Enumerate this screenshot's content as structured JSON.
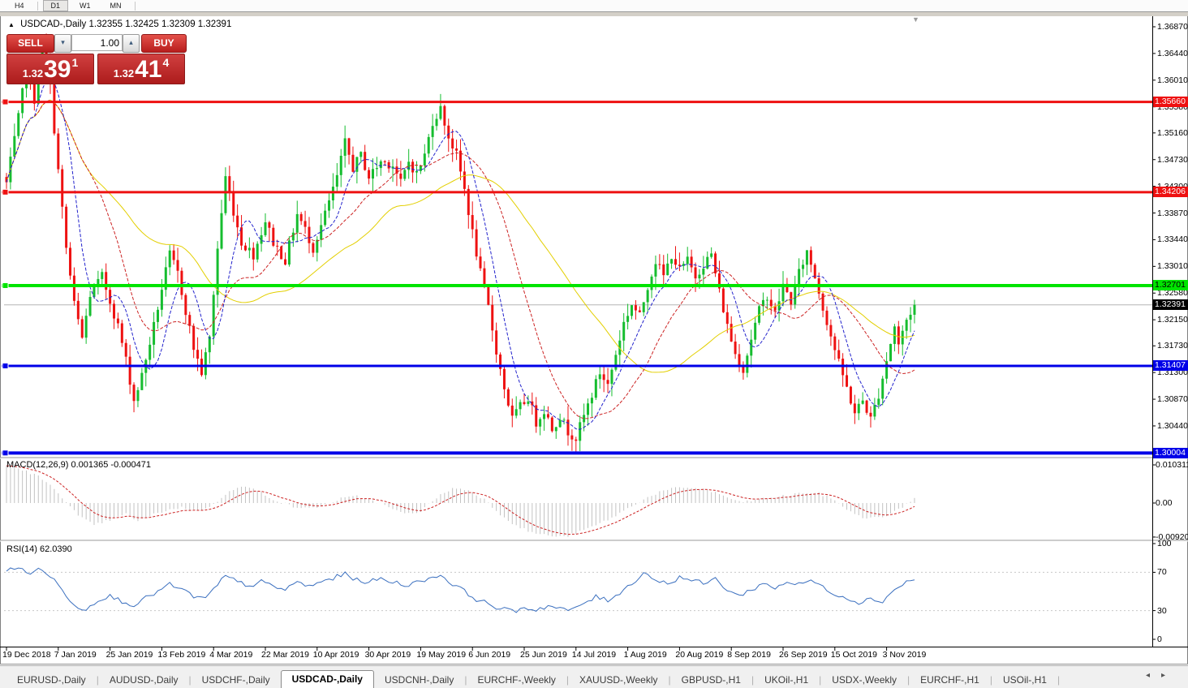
{
  "icons": {
    "collapse_triangle": "▲",
    "scroll_end_triangle": "▼",
    "spinner_up": "▴",
    "spinner_down": "▾",
    "tabs_prev": "◂",
    "tabs_next": "▸"
  },
  "toolbar": {
    "timeframes": [
      {
        "label": "H4",
        "active": false
      },
      {
        "label": "D1",
        "active": true
      },
      {
        "label": "W1",
        "active": false
      },
      {
        "label": "MN",
        "active": false
      }
    ]
  },
  "chart_header": {
    "title": "USDCAD-,Daily",
    "ohlc": "1.32355 1.32425 1.32309 1.32391"
  },
  "trade_widget": {
    "sell_label": "SELL",
    "buy_label": "BUY",
    "volume": "1.00",
    "sell_price": {
      "small": "1.32",
      "big": "39",
      "sup": "1"
    },
    "buy_price": {
      "small": "1.32",
      "big": "41",
      "sup": "4"
    }
  },
  "price_axis": {
    "ticks": [
      "1.36870",
      "1.36440",
      "1.36010",
      "1.35580",
      "1.35160",
      "1.34730",
      "1.34300",
      "1.33870",
      "1.33440",
      "1.33010",
      "1.32580",
      "1.32150",
      "1.31730",
      "1.31300",
      "1.30870",
      "1.30440"
    ],
    "line_labels": [
      {
        "text": "1.35660",
        "price": 1.3566,
        "bg": "#ee1111",
        "fg": "#ffffff"
      },
      {
        "text": "1.34206",
        "price": 1.34206,
        "bg": "#ee1111",
        "fg": "#ffffff"
      },
      {
        "text": "1.32701",
        "price": 1.32701,
        "bg": "#00e400",
        "fg": "#000000"
      },
      {
        "text": "1.32391",
        "price": 1.32391,
        "bg": "#000000",
        "fg": "#ffffff"
      },
      {
        "text": "1.31407",
        "price": 1.31407,
        "bg": "#0000e8",
        "fg": "#ffffff"
      },
      {
        "text": "1.30004",
        "price": 1.30004,
        "bg": "#0000e8",
        "fg": "#ffffff"
      }
    ]
  },
  "macd_panel": {
    "label": "MACD(12,26,9) 0.001365 -0.000471",
    "scale": [
      "0.010311",
      "0.00",
      "-0.009203"
    ]
  },
  "rsi_panel": {
    "label": "RSI(14) 62.0390",
    "scale": [
      "100",
      "70",
      "30",
      "0"
    ]
  },
  "date_axis": [
    "19 Dec 2018",
    "7 Jan 2019",
    "25 Jan 2019",
    "13 Feb 2019",
    "4 Mar 2019",
    "22 Mar 2019",
    "10 Apr 2019",
    "30 Apr 2019",
    "19 May 2019",
    "6 Jun 2019",
    "25 Jun 2019",
    "14 Jul 2019",
    "1 Aug 2019",
    "20 Aug 2019",
    "8 Sep 2019",
    "26 Sep 2019",
    "15 Oct 2019",
    "3 Nov 2019"
  ],
  "tabs": [
    {
      "label": "EURUSD-,Daily",
      "active": false
    },
    {
      "label": "AUDUSD-,Daily",
      "active": false
    },
    {
      "label": "USDCHF-,Daily",
      "active": false
    },
    {
      "label": "USDCAD-,Daily",
      "active": true
    },
    {
      "label": "USDCNH-,Daily",
      "active": false
    },
    {
      "label": "EURCHF-,Weekly",
      "active": false
    },
    {
      "label": "XAUUSD-,Weekly",
      "active": false
    },
    {
      "label": "GBPUSD-,H1",
      "active": false
    },
    {
      "label": "UKOil-,H1",
      "active": false
    },
    {
      "label": "USDX-,Weekly",
      "active": false
    },
    {
      "label": "EURCHF-,H1",
      "active": false
    },
    {
      "label": "USOil-,H1",
      "active": false
    }
  ],
  "chart_data": {
    "type": "candlestick",
    "symbol": "USDCAD-",
    "timeframe": "Daily",
    "ohlc_display": {
      "open": 1.32355,
      "high": 1.32425,
      "low": 1.32309,
      "close": 1.32391
    },
    "y_axis": {
      "max_label": 1.3687,
      "min_label": 1.3044,
      "tick_step": 0.0043
    },
    "x_range": {
      "first_tick": "19 Dec 2018",
      "last_tick": "3 Nov 2019",
      "bars_visible": 229
    },
    "horizontal_lines": [
      {
        "price": 1.3566,
        "color": "#ee1111",
        "width": 3,
        "handle": true
      },
      {
        "price": 1.34206,
        "color": "#ee1111",
        "width": 3,
        "handle": true
      },
      {
        "price": 1.32701,
        "color": "#00e400",
        "width": 4,
        "handle": true
      },
      {
        "price": 1.32391,
        "color": "#b6b6b6",
        "width": 1,
        "handle": false,
        "role": "current-price"
      },
      {
        "price": 1.31407,
        "color": "#0000e8",
        "width": 3,
        "handle": true
      },
      {
        "price": 1.30004,
        "color": "#0000e8",
        "width": 4,
        "handle": true
      }
    ],
    "colors": {
      "candle_up": "#16bd2f",
      "candle_down": "#ee1111",
      "ma_fast": "#2222cc",
      "ma_mid": "#cc2222",
      "ma_slow": "#e3cf00",
      "macd_bars": "#c2c2c2",
      "macd_signal": "#cc2222",
      "rsi_line": "#3a6fbf",
      "rsi_levels": "#c8c8c8"
    },
    "moving_averages": [
      {
        "name": "fast",
        "style": "dashed",
        "period": 8
      },
      {
        "name": "mid",
        "style": "dashed",
        "period": 20
      },
      {
        "name": "slow",
        "style": "solid",
        "period": 45
      }
    ],
    "price_anchors": [
      [
        0,
        1.3435
      ],
      [
        3,
        1.354
      ],
      [
        5,
        1.362
      ],
      [
        7,
        1.357
      ],
      [
        9,
        1.3655
      ],
      [
        11,
        1.359
      ],
      [
        13,
        1.3455
      ],
      [
        15,
        1.333
      ],
      [
        17,
        1.324
      ],
      [
        19,
        1.3185
      ],
      [
        21,
        1.3255
      ],
      [
        24,
        1.3285
      ],
      [
        26,
        1.3245
      ],
      [
        28,
        1.3205
      ],
      [
        30,
        1.315
      ],
      [
        32,
        1.3085
      ],
      [
        34,
        1.3125
      ],
      [
        37,
        1.3205
      ],
      [
        39,
        1.3265
      ],
      [
        41,
        1.332
      ],
      [
        43,
        1.329
      ],
      [
        45,
        1.323
      ],
      [
        47,
        1.317
      ],
      [
        49,
        1.313
      ],
      [
        51,
        1.3185
      ],
      [
        53,
        1.333
      ],
      [
        55,
        1.3445
      ],
      [
        57,
        1.339
      ],
      [
        59,
        1.334
      ],
      [
        62,
        1.332
      ],
      [
        65,
        1.3375
      ],
      [
        67,
        1.334
      ],
      [
        70,
        1.331
      ],
      [
        73,
        1.3385
      ],
      [
        75,
        1.336
      ],
      [
        77,
        1.333
      ],
      [
        80,
        1.3385
      ],
      [
        83,
        1.3445
      ],
      [
        85,
        1.35
      ],
      [
        87,
        1.346
      ],
      [
        89,
        1.348
      ],
      [
        91,
        1.3445
      ],
      [
        94,
        1.347
      ],
      [
        97,
        1.3465
      ],
      [
        99,
        1.3435
      ],
      [
        101,
        1.347
      ],
      [
        103,
        1.345
      ],
      [
        105,
        1.348
      ],
      [
        107,
        1.3535
      ],
      [
        109,
        1.3555
      ],
      [
        111,
        1.351
      ],
      [
        113,
        1.348
      ],
      [
        115,
        1.3425
      ],
      [
        117,
        1.3355
      ],
      [
        119,
        1.329
      ],
      [
        121,
        1.3235
      ],
      [
        123,
        1.3165
      ],
      [
        125,
        1.3105
      ],
      [
        127,
        1.3055
      ],
      [
        129,
        1.3075
      ],
      [
        131,
        1.309
      ],
      [
        133,
        1.305
      ],
      [
        135,
        1.307
      ],
      [
        137,
        1.304
      ],
      [
        139,
        1.306
      ],
      [
        141,
        1.3035
      ],
      [
        143,
        1.3025
      ],
      [
        145,
        1.306
      ],
      [
        147,
        1.3095
      ],
      [
        149,
        1.313
      ],
      [
        151,
        1.311
      ],
      [
        153,
        1.316
      ],
      [
        155,
        1.321
      ],
      [
        157,
        1.324
      ],
      [
        159,
        1.322
      ],
      [
        161,
        1.327
      ],
      [
        163,
        1.331
      ],
      [
        165,
        1.3285
      ],
      [
        167,
        1.332
      ],
      [
        169,
        1.3295
      ],
      [
        171,
        1.331
      ],
      [
        173,
        1.3285
      ],
      [
        175,
        1.3305
      ],
      [
        177,
        1.332
      ],
      [
        179,
        1.326
      ],
      [
        181,
        1.3205
      ],
      [
        183,
        1.316
      ],
      [
        185,
        1.3135
      ],
      [
        187,
        1.3185
      ],
      [
        189,
        1.323
      ],
      [
        191,
        1.3255
      ],
      [
        193,
        1.3225
      ],
      [
        195,
        1.327
      ],
      [
        197,
        1.3245
      ],
      [
        199,
        1.329
      ],
      [
        201,
        1.3325
      ],
      [
        203,
        1.3285
      ],
      [
        205,
        1.3235
      ],
      [
        207,
        1.319
      ],
      [
        209,
        1.3145
      ],
      [
        211,
        1.3105
      ],
      [
        213,
        1.3065
      ],
      [
        215,
        1.3085
      ],
      [
        217,
        1.3055
      ],
      [
        219,
        1.3095
      ],
      [
        221,
        1.315
      ],
      [
        223,
        1.3205
      ],
      [
        224,
        1.3175
      ],
      [
        226,
        1.3215
      ],
      [
        228,
        1.32391
      ]
    ],
    "indicators": {
      "macd": {
        "label": "MACD(12,26,9)",
        "main_value": 0.001365,
        "signal_value": -0.000471,
        "scale_max": 0.010311,
        "scale_min": -0.009203,
        "anchors": [
          [
            0,
            0.01
          ],
          [
            4,
            0.009
          ],
          [
            8,
            0.0072
          ],
          [
            12,
            0.0038
          ],
          [
            15,
            0.0005
          ],
          [
            18,
            -0.0035
          ],
          [
            22,
            -0.006
          ],
          [
            27,
            -0.0042
          ],
          [
            30,
            -0.003
          ],
          [
            33,
            -0.0048
          ],
          [
            36,
            -0.0035
          ],
          [
            40,
            -0.002
          ],
          [
            44,
            -0.0012
          ],
          [
            48,
            -0.0022
          ],
          [
            52,
            -0.0005
          ],
          [
            56,
            0.0035
          ],
          [
            60,
            0.0045
          ],
          [
            64,
            0.0028
          ],
          [
            68,
            0.0005
          ],
          [
            72,
            -0.001
          ],
          [
            76,
            -0.0015
          ],
          [
            80,
            -0.0005
          ],
          [
            84,
            0.0012
          ],
          [
            88,
            0.0018
          ],
          [
            92,
            0.0008
          ],
          [
            96,
            -0.0012
          ],
          [
            100,
            -0.003
          ],
          [
            104,
            -0.0022
          ],
          [
            108,
            0.0015
          ],
          [
            112,
            0.004
          ],
          [
            116,
            0.0035
          ],
          [
            120,
            0.001
          ],
          [
            124,
            -0.003
          ],
          [
            128,
            -0.0062
          ],
          [
            132,
            -0.008
          ],
          [
            136,
            -0.0088
          ],
          [
            140,
            -0.0092
          ],
          [
            144,
            -0.0078
          ],
          [
            148,
            -0.006
          ],
          [
            152,
            -0.004
          ],
          [
            156,
            -0.0015
          ],
          [
            160,
            0.001
          ],
          [
            164,
            0.003
          ],
          [
            168,
            0.004
          ],
          [
            172,
            0.0042
          ],
          [
            176,
            0.0035
          ],
          [
            180,
            0.002
          ],
          [
            184,
            0.0002
          ],
          [
            188,
            0.0008
          ],
          [
            192,
            0.0015
          ],
          [
            196,
            0.002
          ],
          [
            200,
            0.0028
          ],
          [
            204,
            0.0026
          ],
          [
            208,
            0.0008
          ],
          [
            212,
            -0.0025
          ],
          [
            216,
            -0.0042
          ],
          [
            220,
            -0.0038
          ],
          [
            224,
            -0.0018
          ],
          [
            228,
            0.001365
          ]
        ]
      },
      "rsi": {
        "label": "RSI(14)",
        "value": 62.039,
        "levels": [
          70,
          30
        ],
        "anchors": [
          [
            0,
            72
          ],
          [
            3,
            74
          ],
          [
            6,
            70
          ],
          [
            9,
            73
          ],
          [
            12,
            62
          ],
          [
            15,
            45
          ],
          [
            18,
            34
          ],
          [
            20,
            31
          ],
          [
            23,
            42
          ],
          [
            26,
            45
          ],
          [
            29,
            40
          ],
          [
            32,
            36
          ],
          [
            35,
            43
          ],
          [
            38,
            50
          ],
          [
            41,
            57
          ],
          [
            44,
            52
          ],
          [
            47,
            45
          ],
          [
            50,
            42
          ],
          [
            53,
            57
          ],
          [
            55,
            66
          ],
          [
            58,
            60
          ],
          [
            61,
            56
          ],
          [
            64,
            60
          ],
          [
            67,
            55
          ],
          [
            70,
            52
          ],
          [
            73,
            60
          ],
          [
            76,
            55
          ],
          [
            79,
            60
          ],
          [
            82,
            64
          ],
          [
            85,
            68
          ],
          [
            88,
            62
          ],
          [
            91,
            60
          ],
          [
            94,
            63
          ],
          [
            97,
            60
          ],
          [
            100,
            57
          ],
          [
            103,
            59
          ],
          [
            106,
            64
          ],
          [
            109,
            67
          ],
          [
            112,
            58
          ],
          [
            115,
            50
          ],
          [
            118,
            42
          ],
          [
            121,
            37
          ],
          [
            124,
            32
          ],
          [
            127,
            29
          ],
          [
            130,
            33
          ],
          [
            133,
            31
          ],
          [
            136,
            35
          ],
          [
            139,
            32
          ],
          [
            142,
            30
          ],
          [
            145,
            38
          ],
          [
            148,
            44
          ],
          [
            151,
            41
          ],
          [
            154,
            49
          ],
          [
            157,
            58
          ],
          [
            160,
            70
          ],
          [
            163,
            62
          ],
          [
            166,
            58
          ],
          [
            169,
            65
          ],
          [
            172,
            62
          ],
          [
            175,
            58
          ],
          [
            178,
            63
          ],
          [
            181,
            52
          ],
          [
            184,
            45
          ],
          [
            187,
            52
          ],
          [
            190,
            58
          ],
          [
            193,
            54
          ],
          [
            196,
            60
          ],
          [
            199,
            57
          ],
          [
            202,
            62
          ],
          [
            205,
            54
          ],
          [
            208,
            48
          ],
          [
            211,
            43
          ],
          [
            214,
            39
          ],
          [
            217,
            42
          ],
          [
            220,
            40
          ],
          [
            223,
            52
          ],
          [
            226,
            60
          ],
          [
            228,
            62.039
          ]
        ]
      }
    }
  }
}
